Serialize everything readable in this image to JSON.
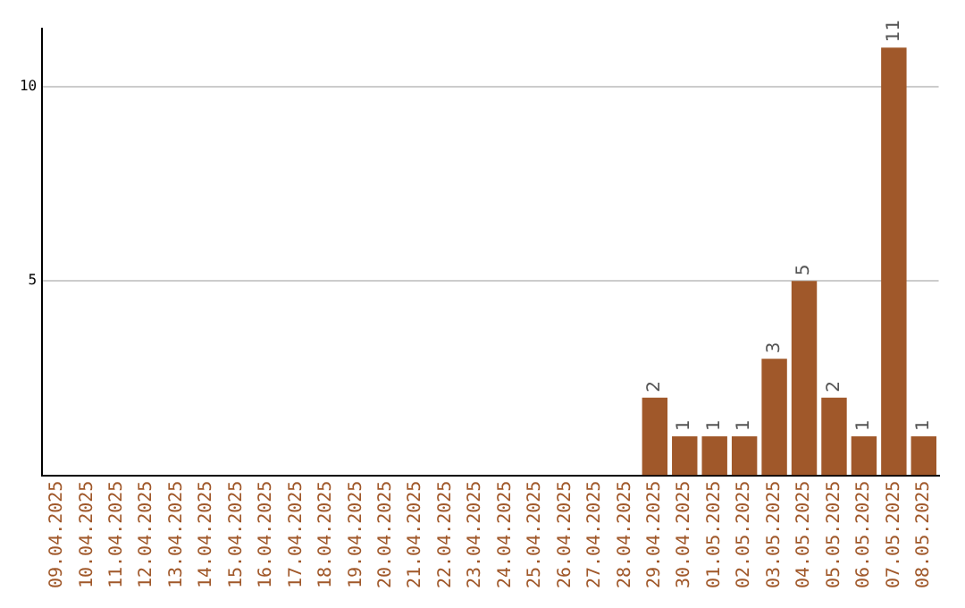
{
  "chart_data": {
    "type": "bar",
    "categories": [
      "09.04.2025",
      "10.04.2025",
      "11.04.2025",
      "12.04.2025",
      "13.04.2025",
      "14.04.2025",
      "15.04.2025",
      "16.04.2025",
      "17.04.2025",
      "18.04.2025",
      "19.04.2025",
      "20.04.2025",
      "21.04.2025",
      "22.04.2025",
      "23.04.2025",
      "24.04.2025",
      "25.04.2025",
      "26.04.2025",
      "27.04.2025",
      "28.04.2025",
      "29.04.2025",
      "30.04.2025",
      "01.05.2025",
      "02.05.2025",
      "03.05.2025",
      "04.05.2025",
      "05.05.2025",
      "06.05.2025",
      "07.05.2025",
      "08.05.2025"
    ],
    "values": [
      0,
      0,
      0,
      0,
      0,
      0,
      0,
      0,
      0,
      0,
      0,
      0,
      0,
      0,
      0,
      0,
      0,
      0,
      0,
      0,
      2,
      1,
      1,
      1,
      3,
      5,
      2,
      1,
      11,
      1
    ],
    "value_labels": [
      null,
      null,
      null,
      null,
      null,
      null,
      null,
      null,
      null,
      null,
      null,
      null,
      null,
      null,
      null,
      null,
      null,
      null,
      null,
      null,
      "2",
      "1",
      "1",
      "1",
      "3",
      "5",
      "2",
      "1",
      "11",
      "1"
    ],
    "color": "#a0582a",
    "ylim": [
      0,
      11.5
    ],
    "yticks": [
      5,
      10
    ],
    "grid": "y",
    "legend": false
  }
}
